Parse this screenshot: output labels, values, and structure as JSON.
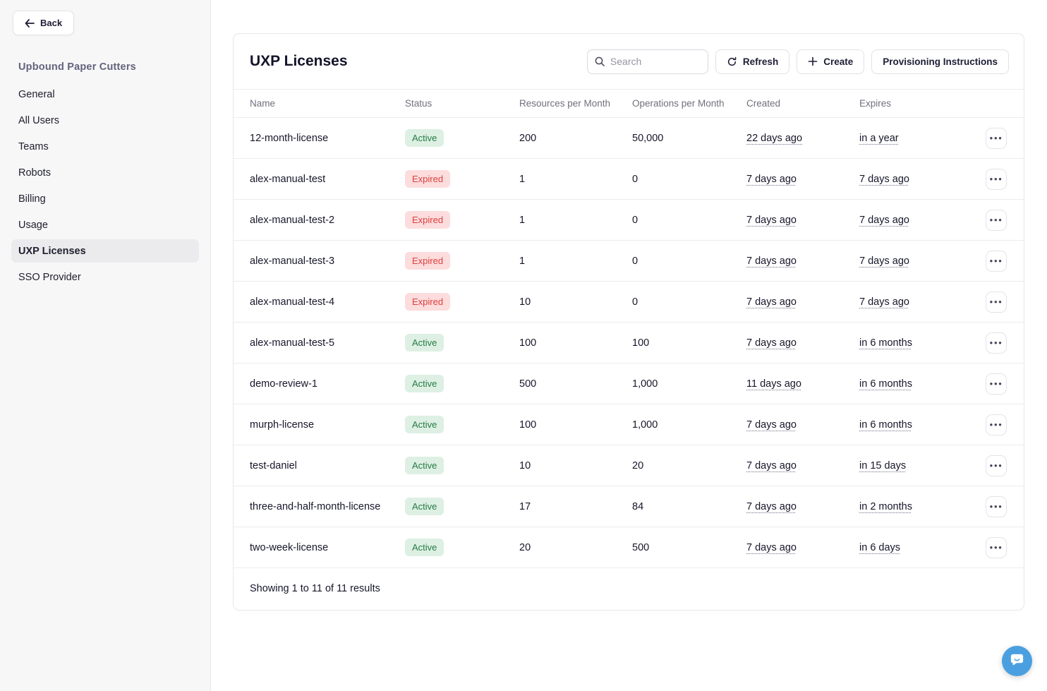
{
  "sidebar": {
    "back_label": "Back",
    "org_title": "Upbound Paper Cutters",
    "items": [
      {
        "label": "General",
        "active": false
      },
      {
        "label": "All Users",
        "active": false
      },
      {
        "label": "Teams",
        "active": false
      },
      {
        "label": "Robots",
        "active": false
      },
      {
        "label": "Billing",
        "active": false
      },
      {
        "label": "Usage",
        "active": false
      },
      {
        "label": "UXP Licenses",
        "active": true
      },
      {
        "label": "SSO Provider",
        "active": false
      }
    ]
  },
  "header": {
    "title": "UXP Licenses",
    "search_placeholder": "Search",
    "search_value": "",
    "refresh_label": "Refresh",
    "create_label": "Create",
    "provisioning_label": "Provisioning Instructions"
  },
  "table": {
    "columns": [
      "Name",
      "Status",
      "Resources per Month",
      "Operations per Month",
      "Created",
      "Expires"
    ],
    "rows": [
      {
        "name": "12-month-license",
        "status": "Active",
        "resources": "200",
        "operations": "50,000",
        "created": "22 days ago",
        "expires": "in a year"
      },
      {
        "name": "alex-manual-test",
        "status": "Expired",
        "resources": "1",
        "operations": "0",
        "created": "7 days ago",
        "expires": "7 days ago"
      },
      {
        "name": "alex-manual-test-2",
        "status": "Expired",
        "resources": "1",
        "operations": "0",
        "created": "7 days ago",
        "expires": "7 days ago"
      },
      {
        "name": "alex-manual-test-3",
        "status": "Expired",
        "resources": "1",
        "operations": "0",
        "created": "7 days ago",
        "expires": "7 days ago"
      },
      {
        "name": "alex-manual-test-4",
        "status": "Expired",
        "resources": "10",
        "operations": "0",
        "created": "7 days ago",
        "expires": "7 days ago"
      },
      {
        "name": "alex-manual-test-5",
        "status": "Active",
        "resources": "100",
        "operations": "100",
        "created": "7 days ago",
        "expires": "in 6 months"
      },
      {
        "name": "demo-review-1",
        "status": "Active",
        "resources": "500",
        "operations": "1,000",
        "created": "11 days ago",
        "expires": "in 6 months"
      },
      {
        "name": "murph-license",
        "status": "Active",
        "resources": "100",
        "operations": "1,000",
        "created": "7 days ago",
        "expires": "in 6 months"
      },
      {
        "name": "test-daniel",
        "status": "Active",
        "resources": "10",
        "operations": "20",
        "created": "7 days ago",
        "expires": "in 15 days"
      },
      {
        "name": "three-and-half-month-license",
        "status": "Active",
        "resources": "17",
        "operations": "84",
        "created": "7 days ago",
        "expires": "in 2 months"
      },
      {
        "name": "two-week-license",
        "status": "Active",
        "resources": "20",
        "operations": "500",
        "created": "7 days ago",
        "expires": "in 6 days"
      }
    ],
    "footer_text": "Showing 1 to 11 of 11 results"
  },
  "icons": {
    "back": "back-arrow-icon",
    "search": "search-icon",
    "refresh": "refresh-icon",
    "create": "plus-icon",
    "row_menu": "ellipsis-icon",
    "chat": "chat-bubble-icon"
  },
  "colors": {
    "active_bg": "#ddf0e3",
    "active_text": "#267b46",
    "expired_bg": "#fcdcdc",
    "expired_text": "#de4040",
    "accent_blue": "#4a9fe0",
    "sidebar_bg": "#f7f7f8",
    "selected_item_bg": "#ebebee"
  }
}
